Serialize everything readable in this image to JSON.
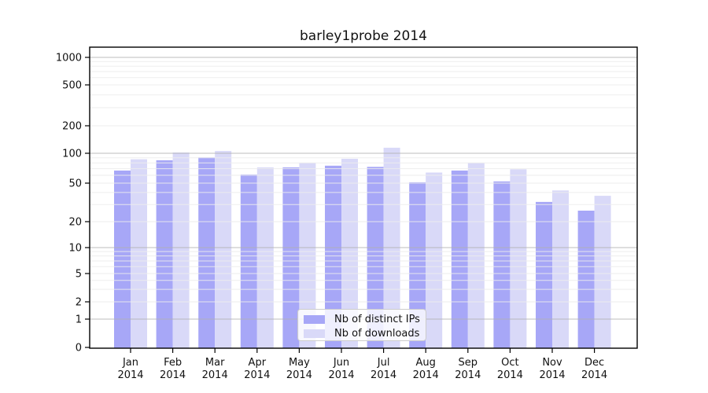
{
  "chart_data": {
    "type": "bar",
    "title": "barley1probe 2014",
    "categories": [
      "Jan",
      "Feb",
      "Mar",
      "Apr",
      "May",
      "Jun",
      "Jul",
      "Aug",
      "Sep",
      "Oct",
      "Nov",
      "Dec"
    ],
    "category_year": "2014",
    "series": [
      {
        "name": "Nb of distinct IPs",
        "color": "#a7a7f7",
        "values": [
          67,
          85,
          91,
          61,
          72,
          75,
          73,
          51,
          67,
          52,
          32,
          26
        ]
      },
      {
        "name": "Nb of downloads",
        "color": "#d9d9f8",
        "values": [
          87,
          102,
          106,
          72,
          80,
          88,
          115,
          64,
          80,
          69,
          42,
          37
        ]
      }
    ],
    "yscale": "log",
    "yticks": [
      0,
      1,
      2,
      5,
      10,
      20,
      50,
      100,
      200,
      500,
      1000
    ],
    "ylim": [
      0,
      1200
    ],
    "xlabel": "",
    "ylabel": "",
    "grid": "horizontal; dark lines at 1,10,100,1000; faint minor lines; grid drawn over bars",
    "legend_position": "bottom-center-inside"
  },
  "colors": {
    "background": "#ffffff",
    "axis": "#000000",
    "major_grid": "#b0b0b0",
    "minor_grid": "#ececec",
    "bar_dark": "#a7a7f7",
    "bar_light": "#d9d9f8"
  }
}
